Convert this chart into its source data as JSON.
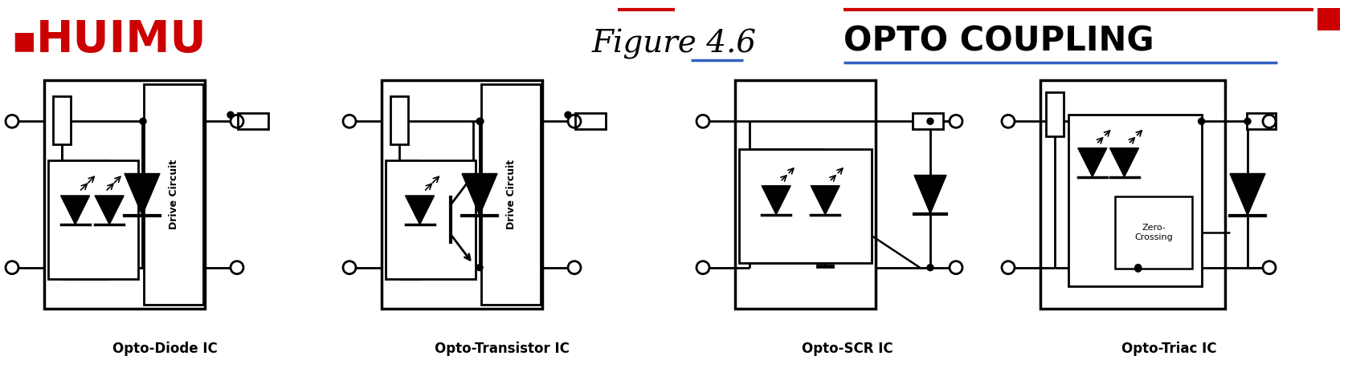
{
  "title": "Figure 4.6",
  "logo_text": "HUIMU",
  "subtitle": "OPTO COUPLING",
  "bg_color": "#ffffff",
  "circuit_color": "#000000",
  "red_color": "#cc0000",
  "blue_color": "#3060c0",
  "labels": [
    "Opto-Diode IC",
    "Opto-Transistor IC",
    "Opto-SCR IC",
    "Opto-Triac IC"
  ],
  "fig_width": 16.78,
  "fig_height": 4.59
}
